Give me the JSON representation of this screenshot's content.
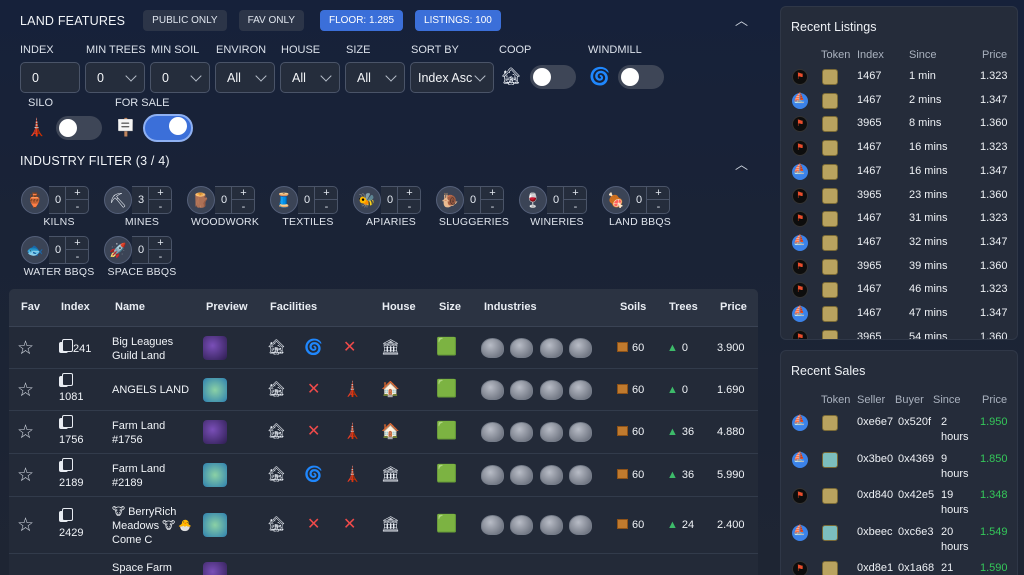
{
  "land_features": {
    "title": "LAND FEATURES",
    "pills": [
      "PUBLIC ONLY",
      "FAV ONLY",
      "FLOOR: 1.285",
      "LISTINGS: 100"
    ],
    "filters": {
      "index": {
        "label": "INDEX",
        "value": "0"
      },
      "min_trees": {
        "label": "MIN TREES",
        "value": "0"
      },
      "min_soil": {
        "label": "MIN SOIL",
        "value": "0"
      },
      "environ": {
        "label": "ENVIRON",
        "value": "All"
      },
      "house": {
        "label": "HOUSE",
        "value": "All"
      },
      "size": {
        "label": "SIZE",
        "value": "All"
      },
      "sort_by": {
        "label": "SORT BY",
        "value": "Index Asc"
      },
      "coop": {
        "label": "COOP",
        "on": false
      },
      "windmill": {
        "label": "WINDMILL",
        "on": false
      },
      "silo": {
        "label": "SILO",
        "on": false
      },
      "for_sale": {
        "label": "FOR SALE",
        "on": true
      }
    }
  },
  "industry": {
    "title": "INDUSTRY FILTER (3 / 4)",
    "items": [
      {
        "name": "KILNS",
        "value": "0"
      },
      {
        "name": "MINES",
        "value": "3"
      },
      {
        "name": "WOODWORK",
        "value": "0"
      },
      {
        "name": "TEXTILES",
        "value": "0"
      },
      {
        "name": "APIARIES",
        "value": "0"
      },
      {
        "name": "SLUGGERIES",
        "value": "0"
      },
      {
        "name": "WINERIES",
        "value": "0"
      },
      {
        "name": "LAND BBQS",
        "value": "0"
      },
      {
        "name": "WATER BBQS",
        "value": "0"
      },
      {
        "name": "SPACE BBQS",
        "value": "0"
      }
    ],
    "plus": "+",
    "minus": "-"
  },
  "table": {
    "headers": [
      "Fav",
      "Index",
      "Name",
      "Preview",
      "Facilities",
      "House",
      "Size",
      "Industries",
      "Soils",
      "Trees",
      "Price"
    ],
    "rows": [
      {
        "index": "241",
        "name": "Big Leagues Guild Land",
        "soils": "60",
        "trees": "0",
        "price": "3.900"
      },
      {
        "index": "1081",
        "name": "ANGELS LAND",
        "soils": "60",
        "trees": "0",
        "price": "1.690"
      },
      {
        "index": "1756",
        "name": "Farm Land #1756",
        "soils": "60",
        "trees": "36",
        "price": "4.880"
      },
      {
        "index": "2189",
        "name": "Farm Land #2189",
        "soils": "60",
        "trees": "36",
        "price": "5.990"
      },
      {
        "index": "2429",
        "name": "🐮 BerryRich Meadows 🐮 🐣 Come C",
        "soils": "60",
        "trees": "24",
        "price": "2.400"
      },
      {
        "index": "",
        "name": "Space Farm",
        "soils": "",
        "trees": "",
        "price": ""
      }
    ]
  },
  "recent_listings": {
    "title": "Recent Listings",
    "headers": [
      "Token",
      "Index",
      "Since",
      "Price"
    ],
    "rows": [
      {
        "chain": "blk",
        "index": "1467",
        "since": "1 min",
        "price": "1.323"
      },
      {
        "chain": "eth",
        "index": "1467",
        "since": "2 mins",
        "price": "1.347"
      },
      {
        "chain": "blk",
        "index": "3965",
        "since": "8 mins",
        "price": "1.360"
      },
      {
        "chain": "blk",
        "index": "1467",
        "since": "16 mins",
        "price": "1.323"
      },
      {
        "chain": "eth",
        "index": "1467",
        "since": "16 mins",
        "price": "1.347"
      },
      {
        "chain": "blk",
        "index": "3965",
        "since": "23 mins",
        "price": "1.360"
      },
      {
        "chain": "blk",
        "index": "1467",
        "since": "31 mins",
        "price": "1.323"
      },
      {
        "chain": "eth",
        "index": "1467",
        "since": "32 mins",
        "price": "1.347"
      },
      {
        "chain": "blk",
        "index": "3965",
        "since": "39 mins",
        "price": "1.360"
      },
      {
        "chain": "blk",
        "index": "1467",
        "since": "46 mins",
        "price": "1.323"
      },
      {
        "chain": "eth",
        "index": "1467",
        "since": "47 mins",
        "price": "1.347"
      },
      {
        "chain": "blk",
        "index": "3965",
        "since": "54 mins",
        "price": "1.360"
      }
    ]
  },
  "recent_sales": {
    "title": "Recent Sales",
    "headers": [
      "Token",
      "Seller",
      "Buyer",
      "Since",
      "Price"
    ],
    "rows": [
      {
        "chain": "eth",
        "seller": "0xe6e7",
        "buyer": "0x520f",
        "since1": "2",
        "since2": "hours",
        "price": "1.950"
      },
      {
        "chain": "eth",
        "seller": "0x3be0",
        "buyer": "0x4369",
        "since1": "9",
        "since2": "hours",
        "price": "1.850"
      },
      {
        "chain": "blk",
        "seller": "0xd840",
        "buyer": "0x42e5",
        "since1": "19",
        "since2": "hours",
        "price": "1.348"
      },
      {
        "chain": "eth",
        "seller": "0xbeec",
        "buyer": "0xc6e3",
        "since1": "20",
        "since2": "hours",
        "price": "1.549"
      },
      {
        "chain": "blk",
        "seller": "0xd8e1",
        "buyer": "0x1a68",
        "since1": "21",
        "since2": "",
        "price": "1.590"
      }
    ]
  },
  "colors": {
    "accent": "#3b6fd9",
    "sale_price": "#34c759",
    "x_mark": "#ef4a4a"
  },
  "icons": {
    "collapse": "chevron-up-icon",
    "fav": "star-outline-icon",
    "copy": "copy-icon"
  }
}
